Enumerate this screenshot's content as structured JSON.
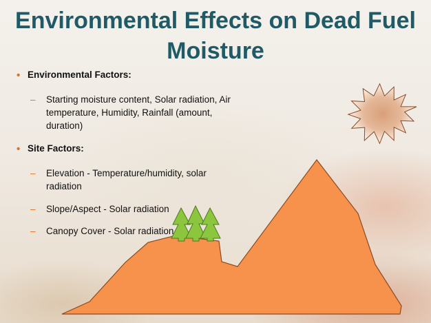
{
  "title": {
    "line1": "Environmental Effects on Dead Fuel",
    "line2": "Moisture"
  },
  "bullets": [
    {
      "label": "Environmental Factors:",
      "subitems": [
        {
          "lines": [
            "Starting moisture content, Solar radiation, Air",
            "temperature, Humidity, Rainfall (amount,",
            "duration)"
          ]
        }
      ]
    },
    {
      "label": "Site Factors:",
      "subitems": [
        {
          "lines": [
            "Elevation - Temperature/humidity, solar",
            "radiation"
          ]
        },
        {
          "lines": [
            "Slope/Aspect - Solar radiation"
          ]
        },
        {
          "lines": [
            "Canopy Cover - Solar radiation"
          ]
        }
      ]
    }
  ],
  "colors": {
    "title": "#1f5a66",
    "accent": "#d9722e",
    "mountain": "#f6924b",
    "mountain_stroke": "#8a4a22",
    "tree": "#8cc63f",
    "tree_stroke": "#4d7a1e",
    "sun_outer": "#d9a07a"
  },
  "icons": {
    "sun": "sun-burst-icon",
    "trees": "pine-tree-icon"
  }
}
